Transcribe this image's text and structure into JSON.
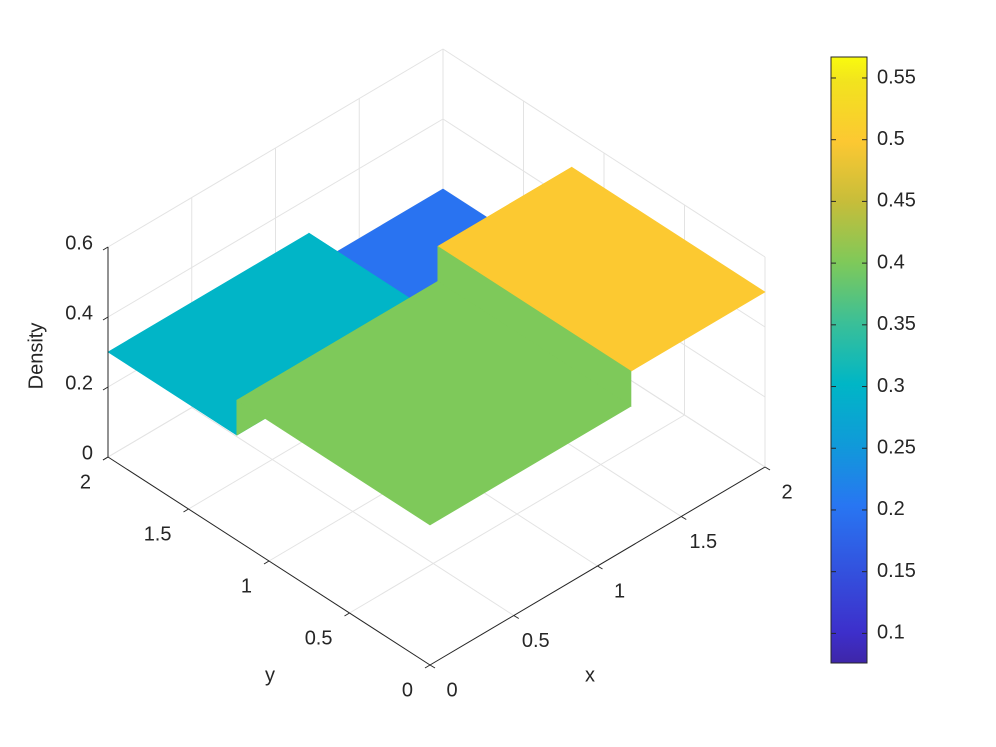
{
  "chart_data": {
    "type": "surface",
    "zlabel": "Density",
    "xlabel": "x",
    "ylabel": "y",
    "xlim": [
      0,
      2
    ],
    "ylim": [
      0,
      2
    ],
    "zlim": [
      0,
      0.6
    ],
    "xticks": [
      0,
      0.5,
      1,
      1.5,
      2
    ],
    "yticks": [
      0,
      0.5,
      1,
      1.5,
      2
    ],
    "zticks": [
      0,
      0.2,
      0.4,
      0.6
    ],
    "grid": true,
    "colormap": "parula",
    "regions": [
      {
        "x": [
          1.2,
          2
        ],
        "y": [
          1.2,
          2
        ],
        "z": 0.2
      },
      {
        "x": [
          0,
          1.2
        ],
        "y": [
          1.2,
          2
        ],
        "z": 0.3
      },
      {
        "x": [
          1.2,
          2
        ],
        "y": [
          0,
          1.2
        ],
        "z": 0.5
      },
      {
        "x": [
          0,
          1.2
        ],
        "y": [
          0,
          1.2
        ],
        "z": 0.4
      }
    ],
    "colorbar": {
      "clim": [
        0.076,
        0.567
      ],
      "ticks": [
        0.1,
        0.15,
        0.2,
        0.25,
        0.3,
        0.35,
        0.4,
        0.45,
        0.5,
        0.55
      ]
    }
  }
}
